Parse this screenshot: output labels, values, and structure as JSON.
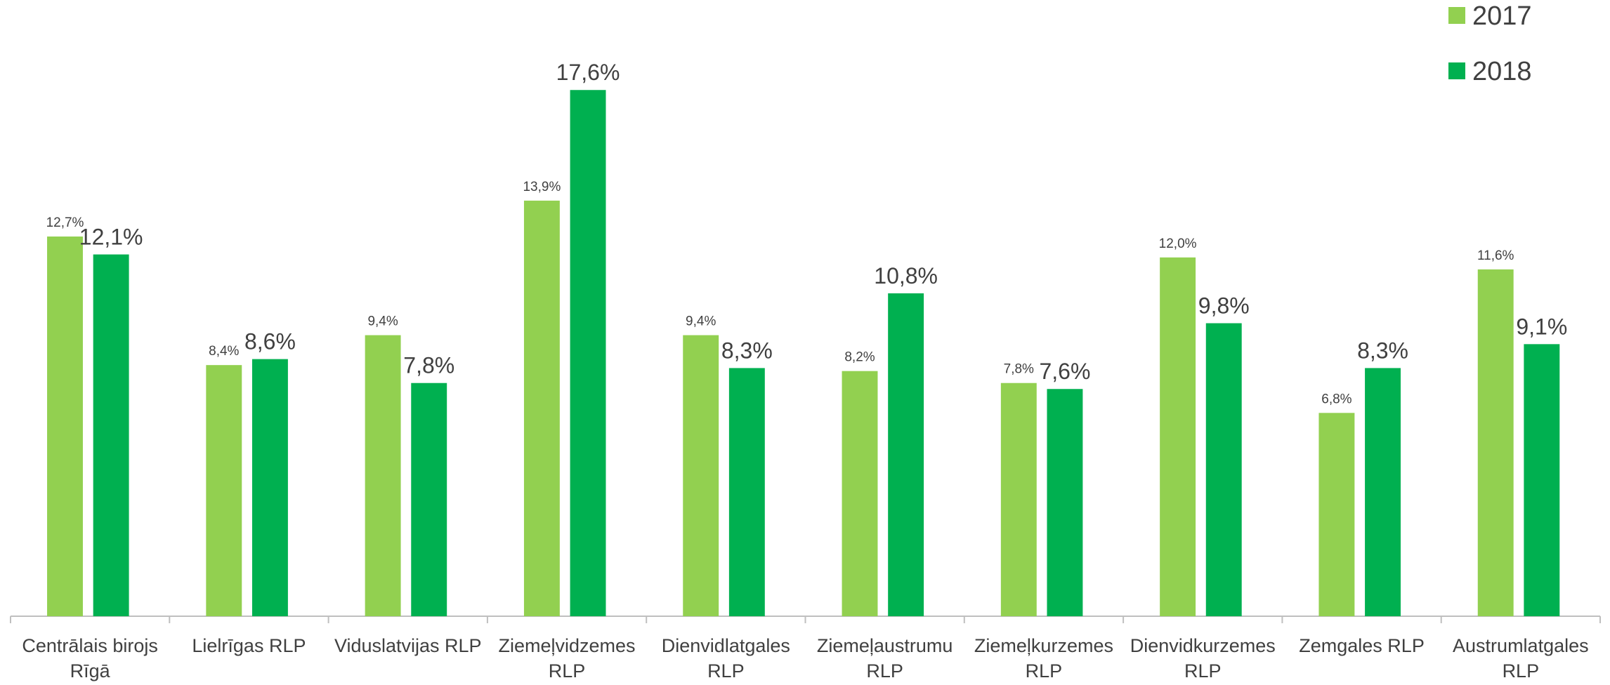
{
  "chart_data": {
    "type": "bar",
    "categories": [
      "Centrālais birojs Rīgā",
      "Lielrīgas RLP",
      "Viduslatvijas RLP",
      "Ziemeļvidzemes RLP",
      "Dienvidlatgales RLP",
      "Ziemeļaustrumu RLP",
      "Ziemeļkurzemes RLP",
      "Dienvidkurzemes RLP",
      "Zemgales RLP",
      "Austrumlatgales RLP"
    ],
    "series": [
      {
        "name": "2017",
        "color": "#92d050",
        "values": [
          12.7,
          8.4,
          9.4,
          13.9,
          9.4,
          8.2,
          7.8,
          12.0,
          6.8,
          11.6
        ],
        "value_labels": [
          "12,7%",
          "8,4%",
          "9,4%",
          "13,9%",
          "9,4%",
          "8,2%",
          "7,8%",
          "12,0%",
          "6,8%",
          "11,6%"
        ]
      },
      {
        "name": "2018",
        "color": "#00b050",
        "values": [
          12.1,
          8.6,
          7.8,
          17.6,
          8.3,
          10.8,
          7.6,
          9.8,
          8.3,
          9.1
        ],
        "value_labels": [
          "12,1%",
          "8,6%",
          "7,8%",
          "17,6%",
          "8,3%",
          "10,8%",
          "7,6%",
          "9,8%",
          "8,3%",
          "9,1%"
        ]
      }
    ],
    "ylim": [
      0,
      20
    ],
    "legend": "top-right"
  }
}
